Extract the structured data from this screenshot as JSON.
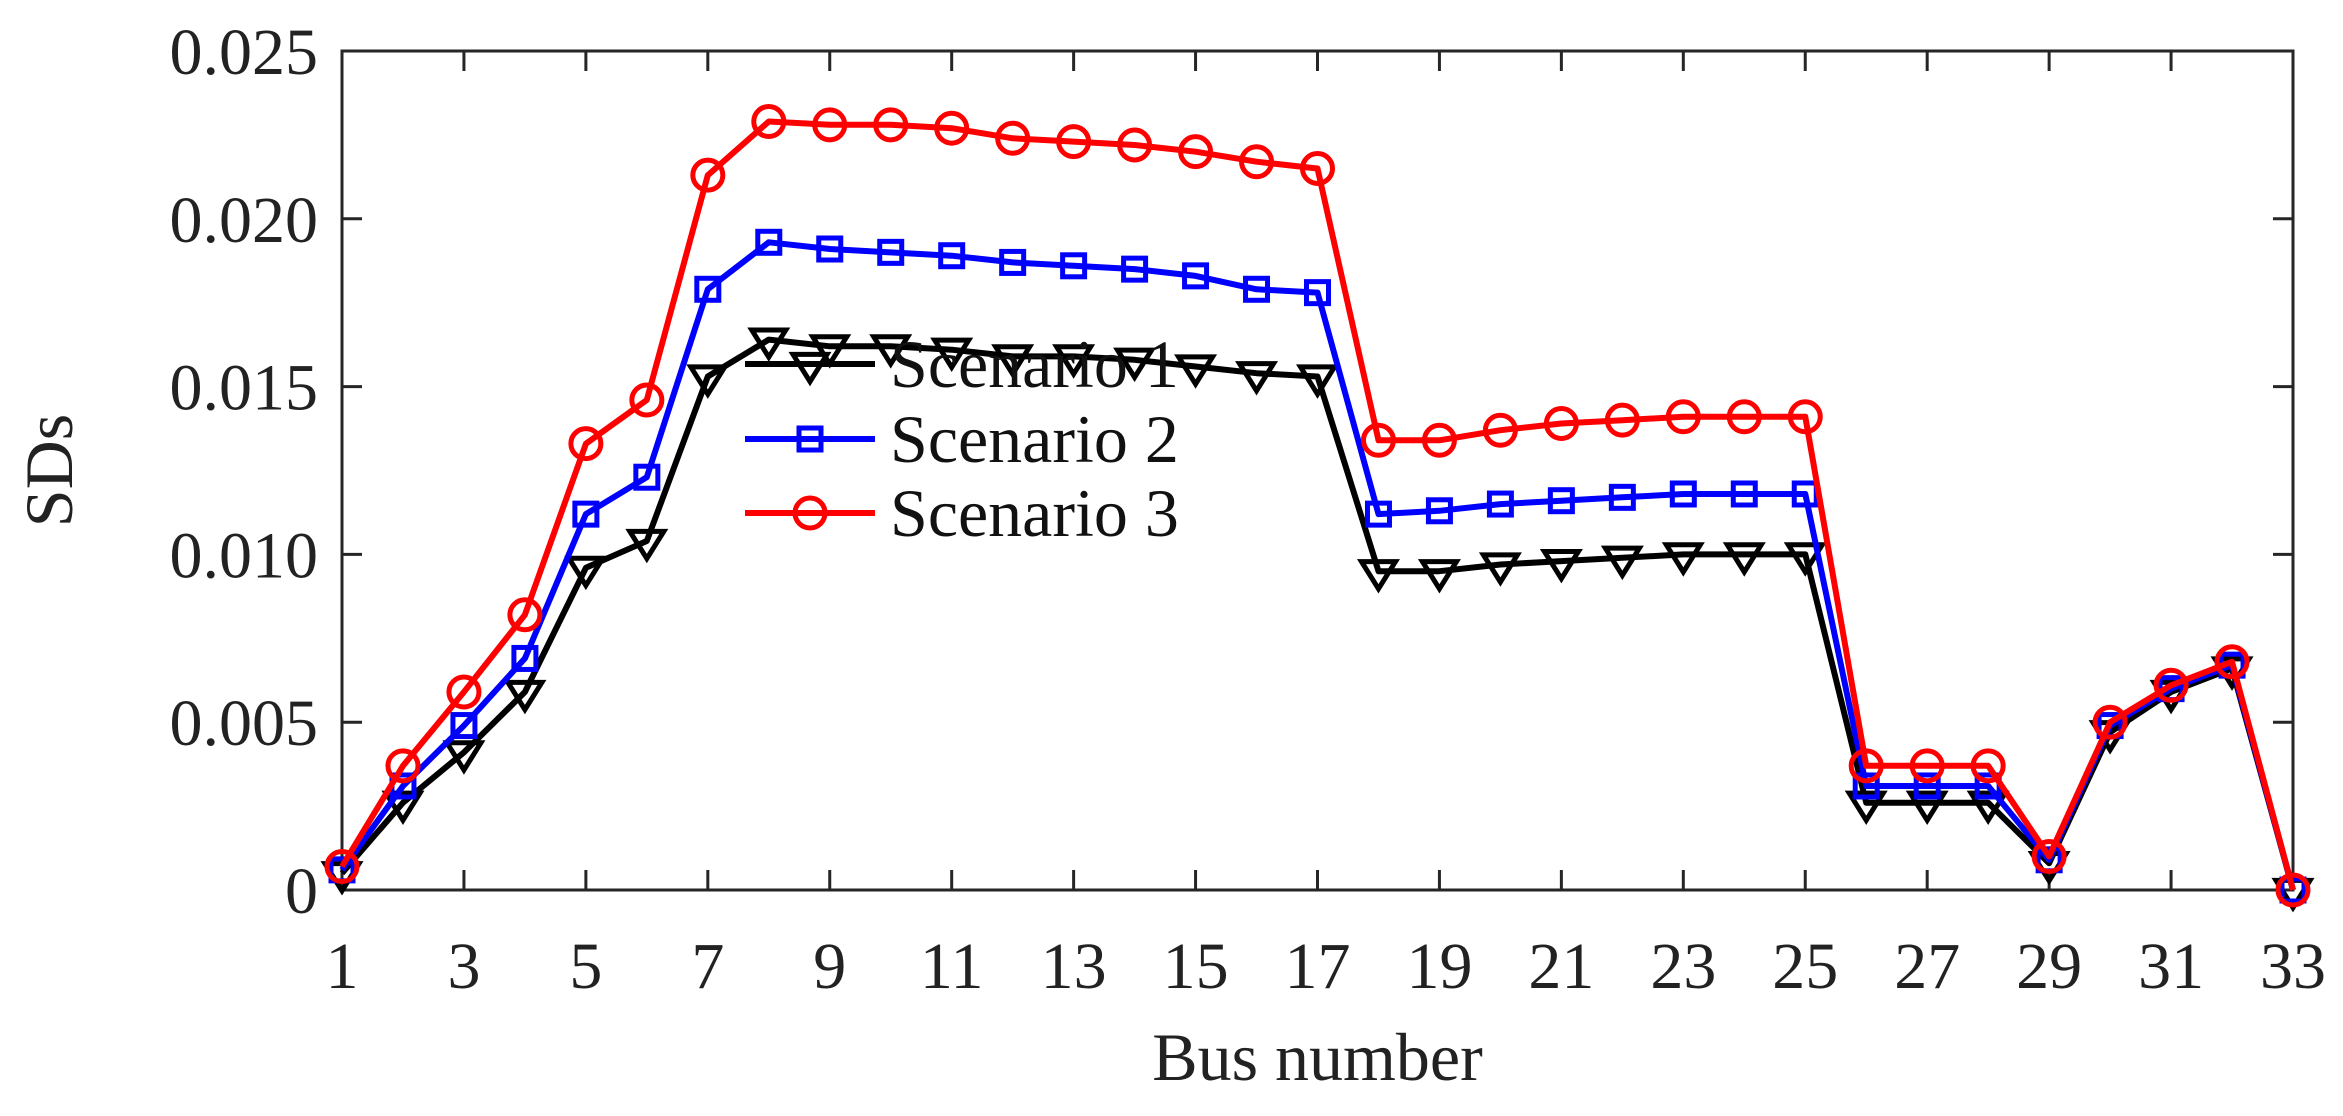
{
  "chart_data": {
    "type": "line",
    "xlabel": "Bus number",
    "ylabel": "SDs",
    "xlim": [
      1,
      33
    ],
    "ylim": [
      0,
      0.025
    ],
    "xticks": [
      1,
      3,
      5,
      7,
      9,
      11,
      13,
      15,
      17,
      19,
      21,
      23,
      25,
      27,
      29,
      31,
      33
    ],
    "yticks": [
      0,
      0.005,
      0.01,
      0.015,
      0.02,
      0.025
    ],
    "ytick_labels": [
      "0",
      "0.005",
      "0.010",
      "0.015",
      "0.020",
      "0.025"
    ],
    "grid": false,
    "legend_position": "center-left",
    "x": [
      1,
      2,
      3,
      4,
      5,
      6,
      7,
      8,
      9,
      10,
      11,
      12,
      13,
      14,
      15,
      16,
      17,
      18,
      19,
      20,
      21,
      22,
      23,
      24,
      25,
      26,
      27,
      28,
      29,
      30,
      31,
      32,
      33
    ],
    "series": [
      {
        "name": "Scenario 1",
        "color": "#000000",
        "marker": "triangle-down",
        "values": [
          0.0005,
          0.0026,
          0.0041,
          0.0059,
          0.0096,
          0.0104,
          0.0153,
          0.0164,
          0.0162,
          0.0162,
          0.0161,
          0.0159,
          0.0159,
          0.0158,
          0.0156,
          0.0154,
          0.0153,
          0.0095,
          0.0095,
          0.0097,
          0.0098,
          0.0099,
          0.01,
          0.01,
          0.01,
          0.0026,
          0.0026,
          0.0026,
          0.0008,
          0.0047,
          0.0059,
          0.0066,
          0.0
        ]
      },
      {
        "name": "Scenario 2",
        "color": "#0000ff",
        "marker": "square",
        "values": [
          0.0006,
          0.0031,
          0.0049,
          0.0069,
          0.0112,
          0.0123,
          0.0179,
          0.0193,
          0.0191,
          0.019,
          0.0189,
          0.0187,
          0.0186,
          0.0185,
          0.0183,
          0.0179,
          0.0178,
          0.0112,
          0.0113,
          0.0115,
          0.0116,
          0.0117,
          0.0118,
          0.0118,
          0.0118,
          0.0031,
          0.0031,
          0.0031,
          0.0009,
          0.0049,
          0.006,
          0.0067,
          0.0
        ]
      },
      {
        "name": "Scenario 3",
        "color": "#ff0000",
        "marker": "circle",
        "values": [
          0.0007,
          0.0037,
          0.0059,
          0.0082,
          0.0133,
          0.0146,
          0.0213,
          0.0229,
          0.0228,
          0.0228,
          0.0227,
          0.0224,
          0.0223,
          0.0222,
          0.022,
          0.0217,
          0.0215,
          0.0134,
          0.0134,
          0.0137,
          0.0139,
          0.014,
          0.0141,
          0.0141,
          0.0141,
          0.0037,
          0.0037,
          0.0037,
          0.001,
          0.005,
          0.0061,
          0.0068,
          0.0
        ]
      }
    ]
  }
}
